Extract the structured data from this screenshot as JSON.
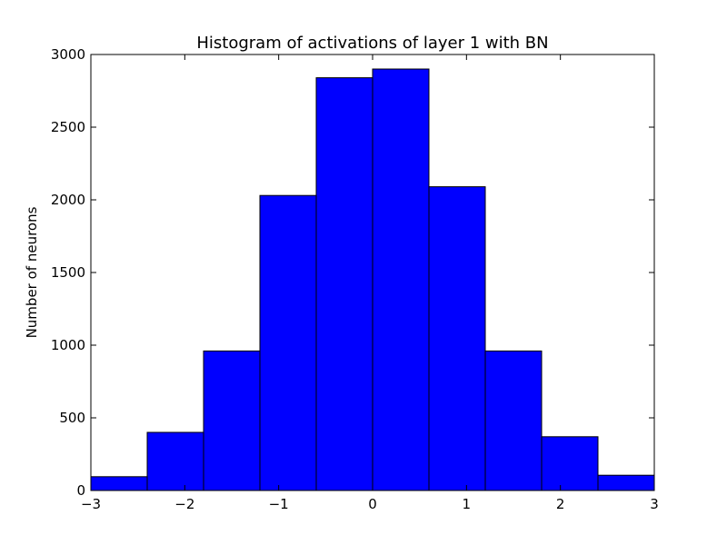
{
  "chart_data": {
    "type": "bar",
    "subtype": "histogram",
    "title": "Histogram of activations of layer 1  with BN",
    "xlabel": "",
    "ylabel": "Number of neurons",
    "xlim": [
      -3,
      3
    ],
    "ylim": [
      0,
      3000
    ],
    "bin_edges": [
      -3,
      -2.4,
      -1.8,
      -1.2,
      -0.6,
      0,
      0.6,
      1.2,
      1.8,
      2.4,
      3
    ],
    "values": [
      95,
      400,
      960,
      2030,
      2840,
      2900,
      2090,
      960,
      370,
      105
    ],
    "x_ticks": [
      -3,
      -2,
      -1,
      0,
      1,
      2,
      3
    ],
    "x_tick_labels": [
      "−3",
      "−2",
      "−1",
      "0",
      "1",
      "2",
      "3"
    ],
    "y_ticks": [
      0,
      500,
      1000,
      1500,
      2000,
      2500,
      3000
    ],
    "y_tick_labels": [
      "0",
      "500",
      "1000",
      "1500",
      "2000",
      "2500",
      "3000"
    ],
    "bar_color": "#0000ff",
    "edge_color": "#000000",
    "grid": false,
    "legend": "none"
  }
}
